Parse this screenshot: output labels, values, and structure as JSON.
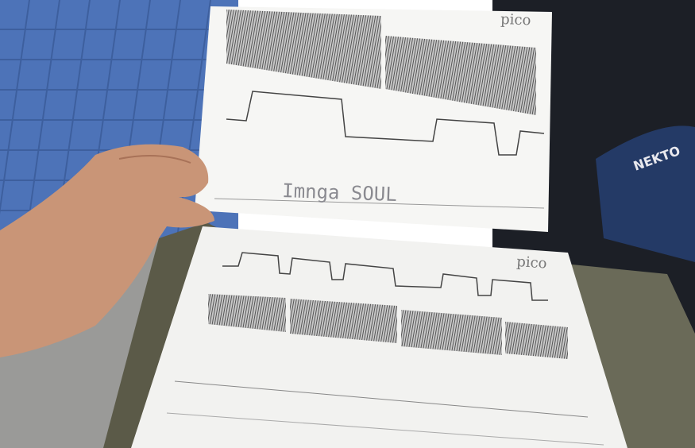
{
  "scene": {
    "labels": {
      "top_logo": "pico",
      "top_note": "Imnga SOUL",
      "bottom_logo": "pico",
      "bag_brand": "NEKTO"
    }
  }
}
